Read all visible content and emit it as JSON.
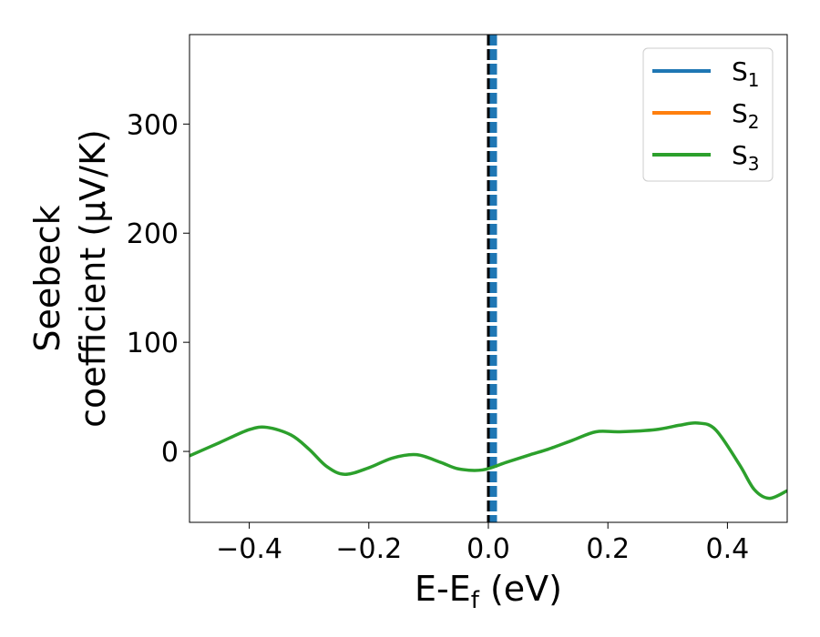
{
  "chart_data": {
    "type": "line",
    "title": "",
    "xlabel": "E-E",
    "xlabel_sub": "f",
    "xlabel_suffix": " (eV)",
    "ylabel_line1": "Seebeck",
    "ylabel_line2": "coefficient  (μV/K)",
    "xlim": [
      -0.5,
      0.5
    ],
    "ylim": [
      -65,
      382
    ],
    "xticks": [
      -0.4,
      -0.2,
      0.0,
      0.2,
      0.4
    ],
    "xtick_labels": [
      "−0.4",
      "−0.2",
      "0.0",
      "0.2",
      "0.4"
    ],
    "yticks": [
      0,
      100,
      200,
      300
    ],
    "ytick_labels": [
      "0",
      "100",
      "200",
      "300"
    ],
    "grid": false,
    "legend_position": "top-right",
    "vertical_line": {
      "x": 0.0,
      "style": "dashed",
      "colors": [
        "#000000",
        "#1f77b4"
      ]
    },
    "x": [
      -0.5,
      -0.45,
      -0.4,
      -0.37,
      -0.33,
      -0.3,
      -0.27,
      -0.24,
      -0.2,
      -0.16,
      -0.12,
      -0.08,
      -0.05,
      -0.01,
      0.03,
      0.07,
      0.1,
      0.14,
      0.18,
      0.22,
      0.28,
      0.32,
      0.35,
      0.38,
      0.42,
      0.445,
      0.47,
      0.5
    ],
    "series": [
      {
        "name": "S",
        "sub": "1",
        "color": "#1f77b4",
        "values": null
      },
      {
        "name": "S",
        "sub": "2",
        "color": "#ff7f0e",
        "values": null
      },
      {
        "name": "S",
        "sub": "3",
        "color": "#2ca02c",
        "values": [
          -4,
          8,
          20,
          22,
          15,
          2,
          -14,
          -21,
          -15,
          -6,
          -3,
          -10,
          -16,
          -17,
          -10,
          -3,
          2,
          10,
          18,
          18,
          20,
          24,
          26,
          20,
          -12,
          -35,
          -43,
          -36
        ]
      }
    ]
  }
}
